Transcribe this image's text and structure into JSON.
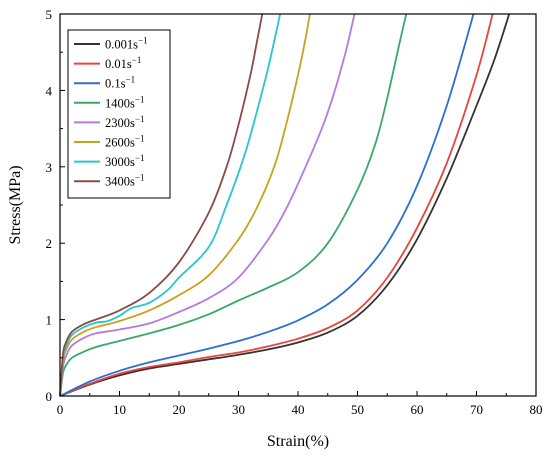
{
  "chart_data": {
    "type": "line",
    "title": "",
    "xlabel": "Strain(%)",
    "ylabel": "Stress(MPa)",
    "xlim": [
      0,
      80
    ],
    "ylim": [
      0,
      5
    ],
    "xticks": [
      0,
      10,
      20,
      30,
      40,
      50,
      60,
      70,
      80
    ],
    "yticks": [
      0,
      1,
      2,
      3,
      4,
      5
    ],
    "grid": false,
    "legend": "top-left",
    "series": [
      {
        "name": "0.001s",
        "sup": "−1",
        "color": "#333333",
        "x": [
          0,
          5,
          10,
          15,
          20,
          25,
          30,
          35,
          40,
          45,
          50,
          55,
          60,
          65,
          70,
          73,
          75.5
        ],
        "y": [
          0,
          0.15,
          0.27,
          0.36,
          0.42,
          0.48,
          0.54,
          0.61,
          0.7,
          0.83,
          1.05,
          1.45,
          2.05,
          2.85,
          3.8,
          4.4,
          5.0
        ]
      },
      {
        "name": "0.01s",
        "sup": "−1",
        "color": "#e8453c",
        "x": [
          0,
          5,
          10,
          15,
          20,
          25,
          30,
          35,
          40,
          45,
          50,
          55,
          60,
          65,
          70,
          72.7
        ],
        "y": [
          0,
          0.16,
          0.29,
          0.38,
          0.44,
          0.51,
          0.57,
          0.65,
          0.75,
          0.89,
          1.12,
          1.55,
          2.2,
          3.05,
          4.2,
          5.0
        ]
      },
      {
        "name": "0.1s",
        "sup": "−1",
        "color": "#2a6fd1",
        "x": [
          0,
          5,
          10,
          15,
          20,
          25,
          30,
          35,
          40,
          45,
          50,
          55,
          60,
          65,
          69.5
        ],
        "y": [
          0,
          0.19,
          0.33,
          0.44,
          0.53,
          0.62,
          0.72,
          0.84,
          0.99,
          1.2,
          1.52,
          2.0,
          2.75,
          3.8,
          5.0
        ]
      },
      {
        "name": "1400s",
        "sup": "−1",
        "color": "#3aa868",
        "x": [
          0,
          0.5,
          1,
          2,
          4,
          6,
          10,
          15,
          20,
          25,
          30,
          35,
          40,
          45,
          50,
          53,
          55,
          57,
          58.2
        ],
        "y": [
          0,
          0.3,
          0.4,
          0.5,
          0.58,
          0.64,
          0.72,
          0.82,
          0.93,
          1.07,
          1.25,
          1.42,
          1.62,
          2.0,
          2.7,
          3.3,
          3.9,
          4.6,
          5.0
        ]
      },
      {
        "name": "2300s",
        "sup": "−1",
        "color": "#b57ae0",
        "x": [
          0,
          0.5,
          1,
          2,
          4,
          6,
          10,
          15,
          20,
          25,
          30,
          35,
          38,
          41,
          44,
          46,
          48,
          49.5
        ],
        "y": [
          0,
          0.38,
          0.52,
          0.66,
          0.76,
          0.82,
          0.87,
          0.95,
          1.1,
          1.28,
          1.55,
          2.05,
          2.45,
          2.95,
          3.5,
          3.95,
          4.5,
          5.0
        ]
      },
      {
        "name": "2600s",
        "sup": "−1",
        "color": "#c9a21c",
        "x": [
          0,
          0.5,
          1,
          2,
          4,
          6,
          10,
          15,
          20,
          25,
          30,
          33,
          36,
          38,
          40,
          41.2,
          42
        ],
        "y": [
          0,
          0.45,
          0.6,
          0.74,
          0.84,
          0.9,
          0.98,
          1.12,
          1.32,
          1.58,
          2.05,
          2.45,
          3.0,
          3.55,
          4.2,
          4.65,
          5.0
        ]
      },
      {
        "name": "3000s",
        "sup": "−1",
        "color": "#27c7cc",
        "x": [
          0,
          0.5,
          1,
          2,
          4,
          6,
          8,
          10,
          12,
          15,
          18,
          20,
          25,
          28,
          31,
          33,
          35,
          37
        ],
        "y": [
          0,
          0.5,
          0.65,
          0.8,
          0.9,
          0.96,
          0.98,
          1.05,
          1.15,
          1.22,
          1.38,
          1.55,
          1.95,
          2.5,
          3.15,
          3.7,
          4.3,
          5.0
        ]
      },
      {
        "name": "3400s",
        "sup": "−1",
        "color": "#8a4a45",
        "x": [
          0,
          0.5,
          1,
          2,
          4,
          6,
          10,
          15,
          20,
          25,
          28,
          30,
          32,
          33,
          34
        ],
        "y": [
          0,
          0.55,
          0.7,
          0.84,
          0.94,
          1.0,
          1.12,
          1.35,
          1.75,
          2.4,
          3.0,
          3.55,
          4.2,
          4.6,
          5.0
        ]
      }
    ]
  }
}
